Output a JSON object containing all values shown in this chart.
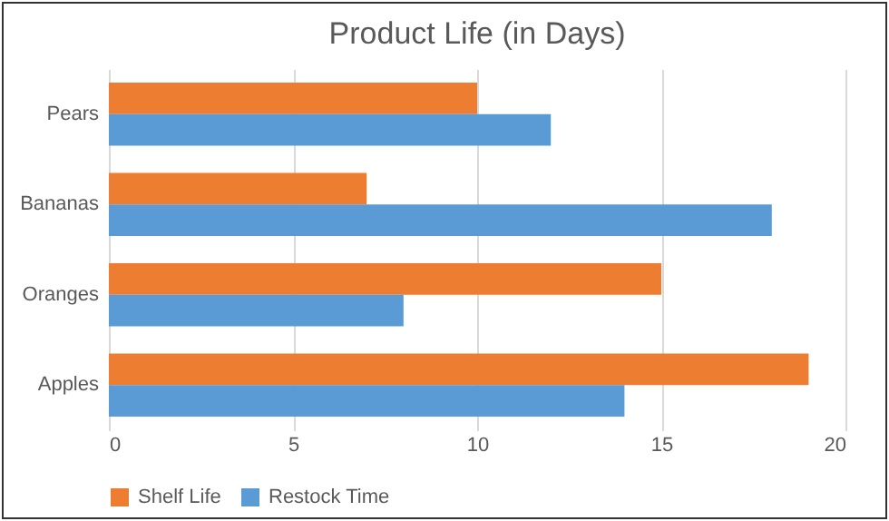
{
  "chart_data": {
    "type": "bar",
    "title": "Product Life (in Days)",
    "orientation": "horizontal",
    "categories": [
      "Pears",
      "Bananas",
      "Oranges",
      "Apples"
    ],
    "series": [
      {
        "name": "Shelf Life",
        "color": "#ed7d31",
        "values": [
          10,
          7,
          15,
          19
        ]
      },
      {
        "name": "Restock Time",
        "color": "#5b9bd5",
        "values": [
          12,
          18,
          8,
          14
        ]
      }
    ],
    "xlim": [
      0,
      20
    ],
    "xticks": [
      0,
      5,
      10,
      15,
      20
    ],
    "grid": "x",
    "legend": "bottom"
  }
}
